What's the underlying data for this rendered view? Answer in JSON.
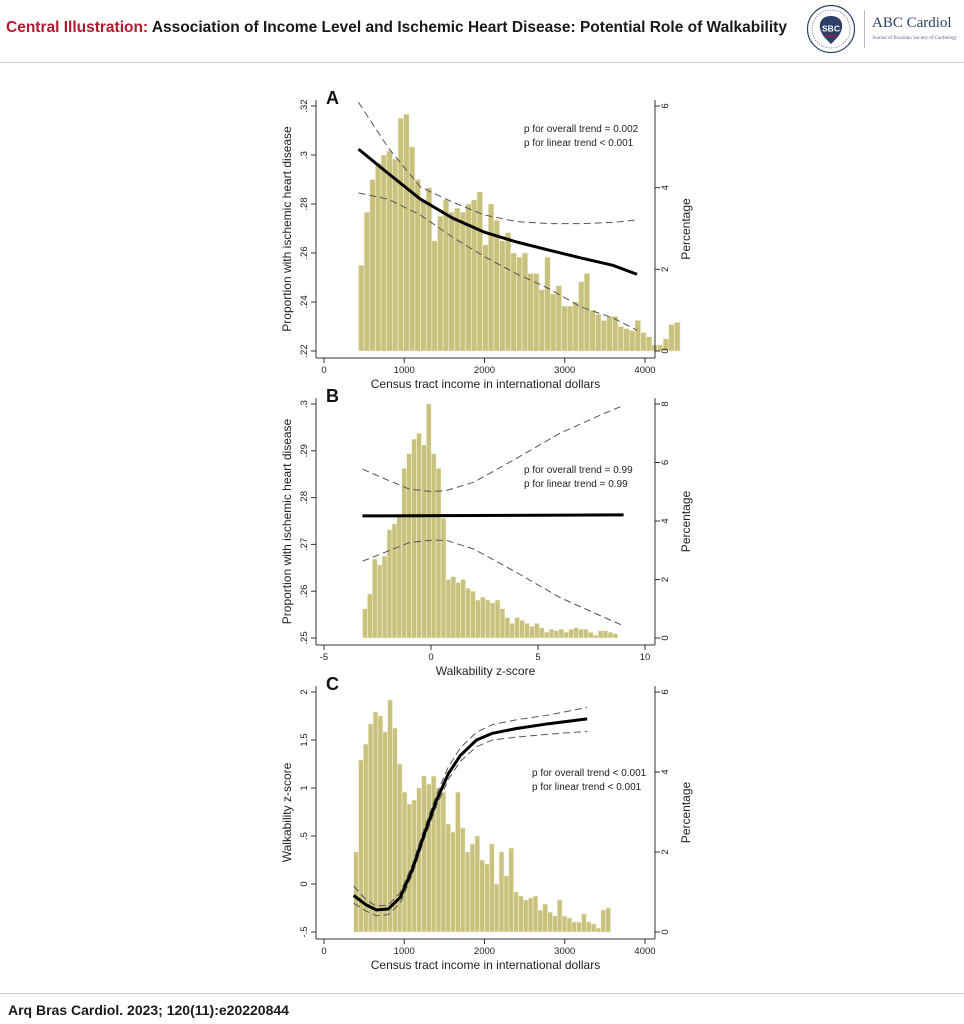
{
  "header": {
    "title_prefix": "Central Illustration:",
    "title_text": "Association of Income Level and Ischemic Heart Disease: Potential Role of Walkability",
    "logo": {
      "seal_text": "SBC",
      "name": "ABC Cardiol",
      "journal": "Journal of Brazilian Society of Cardiology"
    }
  },
  "footer": {
    "citation": "Arq Bras Cardiol. 2023; 120(11):e20220844"
  },
  "colors": {
    "bar_fill": "#c9c27f",
    "bar_stroke": "#f4f1d6",
    "title_red": "#b3182c",
    "logo_blue": "#2c3f69"
  },
  "chart_data": [
    {
      "panel_label": "A",
      "type": "bar",
      "xlabel": "Census tract income in international dollars",
      "ylabel": "Proportion with ischemic heart disease",
      "y2label": "Percentage",
      "xlim": [
        0,
        4000
      ],
      "ylim": [
        0.22,
        0.32
      ],
      "y2lim": [
        0,
        6
      ],
      "xticks": [
        "0",
        "1000",
        "2000",
        "3000",
        "4000"
      ],
      "yticks": [
        ".22",
        ".24",
        ".26",
        ".28",
        ".3",
        ".32"
      ],
      "y2ticks": [
        "0",
        "2",
        "4",
        "6"
      ],
      "annotations": [
        "p for overall trend = 0.002",
        "p for linear trend < 0.001"
      ],
      "histogram": {
        "bin_start": 430,
        "bin_width": 70.3,
        "percentages": [
          2.1,
          3.4,
          4.2,
          4.6,
          4.8,
          4.9,
          4.7,
          5.7,
          5.8,
          5.0,
          4.2,
          3.7,
          4.0,
          2.7,
          3.3,
          3.7,
          3.4,
          3.5,
          3.4,
          3.6,
          3.7,
          3.9,
          2.6,
          3.6,
          3.2,
          2.7,
          2.9,
          2.4,
          2.3,
          2.4,
          1.9,
          1.9,
          1.5,
          2.3,
          1.4,
          1.6,
          1.1,
          1.1,
          1.2,
          1.7,
          1.9,
          1.0,
          0.9,
          0.75,
          0.85,
          0.85,
          0.6,
          0.55,
          0.5,
          0.75,
          0.45,
          0.35,
          0.15,
          0.15,
          0.3,
          0.65,
          0.7
        ]
      },
      "fit": {
        "x": [
          430,
          800,
          1200,
          1600,
          2000,
          2400,
          2800,
          3200,
          3600,
          3900
        ],
        "y": [
          0.3024,
          0.2925,
          0.282,
          0.2743,
          0.2685,
          0.2645,
          0.2612,
          0.258,
          0.255,
          0.2513
        ]
      },
      "upper": {
        "x": [
          430,
          800,
          1200,
          1600,
          2000,
          2400,
          2800,
          3200,
          3600,
          3900
        ],
        "y": [
          0.3215,
          0.303,
          0.287,
          0.2808,
          0.2755,
          0.2728,
          0.272,
          0.272,
          0.2725,
          0.2735
        ]
      },
      "lower": {
        "x": [
          430,
          800,
          1200,
          1600,
          2000,
          2400,
          2800,
          3200,
          3600,
          3900
        ],
        "y": [
          0.2845,
          0.282,
          0.2755,
          0.2665,
          0.2585,
          0.2515,
          0.2455,
          0.238,
          0.2335,
          0.2285
        ]
      }
    },
    {
      "panel_label": "B",
      "type": "bar",
      "xlabel": "Walkability z-score",
      "ylabel": "Proportion with ischemic heart disease",
      "y2label": "Percentage",
      "xlim": [
        -5,
        10
      ],
      "ylim": [
        0.25,
        0.3
      ],
      "y2lim": [
        0,
        8
      ],
      "xticks": [
        "-5",
        "0",
        "5",
        "10"
      ],
      "yticks": [
        ".25",
        ".26",
        ".27",
        ".28",
        ".29",
        ".3"
      ],
      "y2ticks": [
        "0",
        "2",
        "4",
        "6",
        "8"
      ],
      "annotations": [
        "p for overall trend = 0.99",
        "p for linear trend = 0.99"
      ],
      "histogram": {
        "bin_start": -3.2,
        "bin_width": 0.2294,
        "percentages": [
          1.0,
          1.5,
          2.7,
          2.5,
          2.8,
          3.7,
          3.9,
          4.2,
          5.8,
          6.3,
          6.8,
          7.0,
          6.6,
          8.0,
          6.3,
          5.8,
          4.1,
          2.0,
          2.1,
          1.9,
          2.0,
          1.7,
          1.6,
          1.3,
          1.4,
          1.3,
          1.2,
          1.3,
          1.0,
          0.7,
          0.5,
          0.7,
          0.6,
          0.5,
          0.4,
          0.5,
          0.35,
          0.2,
          0.3,
          0.25,
          0.3,
          0.2,
          0.3,
          0.35,
          0.3,
          0.3,
          0.2,
          0.1,
          0.25,
          0.25,
          0.2,
          0.15
        ]
      },
      "fit": {
        "x": [
          -3.2,
          9
        ],
        "y": [
          0.2761,
          0.2763
        ]
      },
      "upper": {
        "x": [
          -3.2,
          -2,
          -1,
          0,
          0.7,
          2,
          4,
          6,
          8,
          9
        ],
        "y": [
          0.2861,
          0.2837,
          0.2818,
          0.2813,
          0.2815,
          0.2833,
          0.2884,
          0.2937,
          0.2978,
          0.2997
        ]
      },
      "lower": {
        "x": [
          -3.2,
          -2,
          -1,
          0,
          0.7,
          2,
          4,
          6,
          8,
          9
        ],
        "y": [
          0.2664,
          0.2686,
          0.2704,
          0.2709,
          0.2709,
          0.269,
          0.264,
          0.2587,
          0.2546,
          0.2526
        ]
      }
    },
    {
      "panel_label": "C",
      "type": "bar",
      "xlabel": "Census tract income in international dollars",
      "ylabel": "Walkability z-score",
      "y2label": "Percentage",
      "xlim": [
        0,
        4000
      ],
      "ylim": [
        -0.5,
        2
      ],
      "y2lim": [
        0,
        6
      ],
      "xticks": [
        "0",
        "1000",
        "2000",
        "3000",
        "4000"
      ],
      "yticks": [
        "-.5",
        "0",
        ".5",
        "1",
        "1.5",
        "2"
      ],
      "y2ticks": [
        "0",
        "2",
        "4",
        "6"
      ],
      "annotations": [
        "p for overall trend < 0.001",
        "p for linear trend < 0.001"
      ],
      "histogram": {
        "bin_start": 370,
        "bin_width": 60.4,
        "percentages": [
          2.0,
          4.3,
          4.7,
          5.2,
          5.5,
          5.4,
          5.0,
          5.8,
          5.1,
          4.2,
          3.5,
          3.2,
          3.3,
          3.6,
          3.9,
          3.7,
          3.9,
          3.6,
          3.5,
          2.7,
          2.5,
          3.5,
          2.6,
          2.0,
          2.2,
          2.4,
          1.8,
          1.7,
          2.2,
          1.2,
          2.0,
          1.4,
          2.1,
          1.0,
          0.9,
          0.8,
          0.85,
          0.9,
          0.55,
          0.7,
          0.5,
          0.4,
          0.8,
          0.4,
          0.35,
          0.25,
          0.25,
          0.45,
          0.25,
          0.2,
          0.1,
          0.55,
          0.6
        ]
      },
      "fit": {
        "x": [
          370,
          520,
          650,
          800,
          950,
          1100,
          1250,
          1400,
          1550,
          1700,
          1900,
          2100,
          2400,
          2800,
          3280
        ],
        "y": [
          -0.12,
          -0.215,
          -0.27,
          -0.26,
          -0.14,
          0.15,
          0.52,
          0.87,
          1.15,
          1.34,
          1.5,
          1.57,
          1.62,
          1.67,
          1.72
        ]
      },
      "upper": {
        "x": [
          370,
          520,
          650,
          800,
          950,
          1100,
          1250,
          1400,
          1550,
          1700,
          1900,
          2100,
          2400,
          2800,
          3280
        ],
        "y": [
          -0.02,
          -0.16,
          -0.23,
          -0.22,
          -0.09,
          0.2,
          0.58,
          0.93,
          1.22,
          1.42,
          1.58,
          1.66,
          1.71,
          1.76,
          1.84
        ]
      },
      "lower": {
        "x": [
          370,
          520,
          650,
          800,
          950,
          1100,
          1250,
          1400,
          1550,
          1700,
          1900,
          2100,
          2400,
          2800,
          3280
        ],
        "y": [
          -0.2,
          -0.28,
          -0.33,
          -0.32,
          -0.2,
          0.1,
          0.47,
          0.81,
          1.09,
          1.28,
          1.43,
          1.5,
          1.53,
          1.56,
          1.59
        ]
      }
    }
  ]
}
